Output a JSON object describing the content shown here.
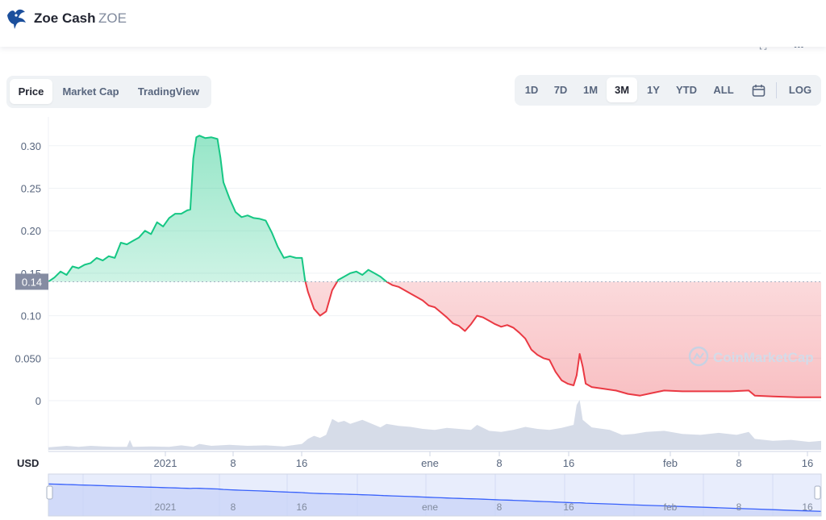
{
  "header": {
    "coin_name": "Zoe Cash",
    "coin_symbol": "ZOE"
  },
  "chart_tabs": [
    "Price",
    "Market Cap",
    "TradingView"
  ],
  "active_chart_tab": "Price",
  "range_buttons": [
    "1D",
    "7D",
    "1M",
    "3M",
    "1Y",
    "YTD",
    "ALL"
  ],
  "active_range": "3M",
  "log_label": "LOG",
  "colors": {
    "up": "#16c784",
    "down": "#ea3943",
    "volume": "#cfd6e4",
    "navigator": "#3861fb",
    "current_badge": "#858ca2"
  },
  "chart_data": {
    "type": "line",
    "currency_label": "USD",
    "current_price_label": "0.14",
    "reference_price": 0.14,
    "y_ticks": [
      "0.30",
      "0.25",
      "0.20",
      "0.15",
      "0.10",
      "0.050",
      "0"
    ],
    "ylim": [
      0,
      0.3
    ],
    "x_ticks": [
      "2021",
      "8",
      "16",
      "ene",
      "8",
      "16",
      "feb",
      "8",
      "16"
    ],
    "grid": true,
    "watermark": "CoinMarketCap",
    "price_series": [
      [
        0,
        0.14
      ],
      [
        2,
        0.145
      ],
      [
        4,
        0.152
      ],
      [
        6,
        0.148
      ],
      [
        8,
        0.158
      ],
      [
        10,
        0.156
      ],
      [
        12,
        0.16
      ],
      [
        14,
        0.162
      ],
      [
        16,
        0.168
      ],
      [
        18,
        0.165
      ],
      [
        20,
        0.17
      ],
      [
        22,
        0.168
      ],
      [
        24,
        0.186
      ],
      [
        26,
        0.184
      ],
      [
        28,
        0.188
      ],
      [
        30,
        0.192
      ],
      [
        32,
        0.2
      ],
      [
        34,
        0.196
      ],
      [
        36,
        0.21
      ],
      [
        38,
        0.205
      ],
      [
        40,
        0.215
      ],
      [
        42,
        0.22
      ],
      [
        44,
        0.22
      ],
      [
        46,
        0.224
      ],
      [
        47,
        0.225
      ],
      [
        48,
        0.285
      ],
      [
        49,
        0.31
      ],
      [
        50,
        0.312
      ],
      [
        52,
        0.309
      ],
      [
        54,
        0.31
      ],
      [
        56,
        0.308
      ],
      [
        57,
        0.286
      ],
      [
        58,
        0.257
      ],
      [
        60,
        0.238
      ],
      [
        62,
        0.222
      ],
      [
        64,
        0.216
      ],
      [
        66,
        0.218
      ],
      [
        68,
        0.215
      ],
      [
        70,
        0.214
      ],
      [
        72,
        0.212
      ],
      [
        74,
        0.198
      ],
      [
        76,
        0.181
      ],
      [
        78,
        0.168
      ],
      [
        80,
        0.17
      ],
      [
        82,
        0.168
      ],
      [
        84,
        0.168
      ],
      [
        85,
        0.142
      ],
      [
        86,
        0.128
      ],
      [
        88,
        0.108
      ],
      [
        90,
        0.1
      ],
      [
        92,
        0.105
      ],
      [
        94,
        0.13
      ],
      [
        96,
        0.142
      ],
      [
        98,
        0.146
      ],
      [
        100,
        0.15
      ],
      [
        102,
        0.152
      ],
      [
        104,
        0.148
      ],
      [
        106,
        0.154
      ],
      [
        108,
        0.15
      ],
      [
        110,
        0.146
      ],
      [
        111,
        0.143
      ],
      [
        112,
        0.14
      ],
      [
        114,
        0.136
      ],
      [
        116,
        0.134
      ],
      [
        118,
        0.13
      ],
      [
        120,
        0.126
      ],
      [
        122,
        0.122
      ],
      [
        124,
        0.118
      ],
      [
        126,
        0.112
      ],
      [
        128,
        0.11
      ],
      [
        130,
        0.104
      ],
      [
        132,
        0.098
      ],
      [
        134,
        0.091
      ],
      [
        136,
        0.088
      ],
      [
        138,
        0.082
      ],
      [
        140,
        0.09
      ],
      [
        142,
        0.1
      ],
      [
        144,
        0.098
      ],
      [
        146,
        0.094
      ],
      [
        148,
        0.09
      ],
      [
        150,
        0.087
      ],
      [
        152,
        0.089
      ],
      [
        154,
        0.086
      ],
      [
        156,
        0.08
      ],
      [
        158,
        0.073
      ],
      [
        160,
        0.06
      ],
      [
        162,
        0.054
      ],
      [
        164,
        0.05
      ],
      [
        166,
        0.048
      ],
      [
        168,
        0.034
      ],
      [
        170,
        0.024
      ],
      [
        172,
        0.02
      ],
      [
        174,
        0.018
      ],
      [
        175,
        0.03
      ],
      [
        176,
        0.055
      ],
      [
        177,
        0.04
      ],
      [
        178,
        0.02
      ],
      [
        180,
        0.016
      ],
      [
        184,
        0.014
      ],
      [
        188,
        0.012
      ],
      [
        192,
        0.008
      ],
      [
        196,
        0.006
      ],
      [
        200,
        0.009
      ],
      [
        204,
        0.012
      ],
      [
        210,
        0.011
      ],
      [
        218,
        0.011
      ],
      [
        226,
        0.011
      ],
      [
        232,
        0.012
      ],
      [
        234,
        0.006
      ],
      [
        240,
        0.005
      ],
      [
        248,
        0.004
      ],
      [
        256,
        0.004
      ]
    ],
    "volume_series": [
      [
        0,
        0.05
      ],
      [
        6,
        0.08
      ],
      [
        10,
        0.06
      ],
      [
        14,
        0.08
      ],
      [
        18,
        0.07
      ],
      [
        22,
        0.06
      ],
      [
        26,
        0.06
      ],
      [
        27,
        0.2
      ],
      [
        28,
        0.06
      ],
      [
        34,
        0.07
      ],
      [
        40,
        0.06
      ],
      [
        44,
        0.09
      ],
      [
        48,
        0.06
      ],
      [
        50,
        0.12
      ],
      [
        54,
        0.08
      ],
      [
        60,
        0.1
      ],
      [
        66,
        0.08
      ],
      [
        72,
        0.09
      ],
      [
        78,
        0.07
      ],
      [
        84,
        0.12
      ],
      [
        86,
        0.22
      ],
      [
        88,
        0.28
      ],
      [
        90,
        0.24
      ],
      [
        92,
        0.3
      ],
      [
        94,
        0.62
      ],
      [
        96,
        0.55
      ],
      [
        98,
        0.58
      ],
      [
        100,
        0.52
      ],
      [
        102,
        0.56
      ],
      [
        104,
        0.6
      ],
      [
        108,
        0.5
      ],
      [
        110,
        0.45
      ],
      [
        112,
        0.52
      ],
      [
        116,
        0.48
      ],
      [
        120,
        0.46
      ],
      [
        124,
        0.42
      ],
      [
        128,
        0.4
      ],
      [
        132,
        0.44
      ],
      [
        136,
        0.42
      ],
      [
        140,
        0.4
      ],
      [
        142,
        0.5
      ],
      [
        146,
        0.38
      ],
      [
        150,
        0.36
      ],
      [
        154,
        0.4
      ],
      [
        158,
        0.46
      ],
      [
        162,
        0.42
      ],
      [
        166,
        0.4
      ],
      [
        170,
        0.44
      ],
      [
        174,
        0.5
      ],
      [
        175,
        0.9
      ],
      [
        176,
        1.0
      ],
      [
        177,
        0.6
      ],
      [
        180,
        0.45
      ],
      [
        186,
        0.4
      ],
      [
        190,
        0.3
      ],
      [
        194,
        0.32
      ],
      [
        198,
        0.36
      ],
      [
        204,
        0.38
      ],
      [
        210,
        0.32
      ],
      [
        216,
        0.3
      ],
      [
        222,
        0.34
      ],
      [
        228,
        0.3
      ],
      [
        232,
        0.36
      ],
      [
        234,
        0.22
      ],
      [
        240,
        0.18
      ],
      [
        246,
        0.2
      ],
      [
        252,
        0.16
      ],
      [
        256,
        0.18
      ]
    ]
  }
}
